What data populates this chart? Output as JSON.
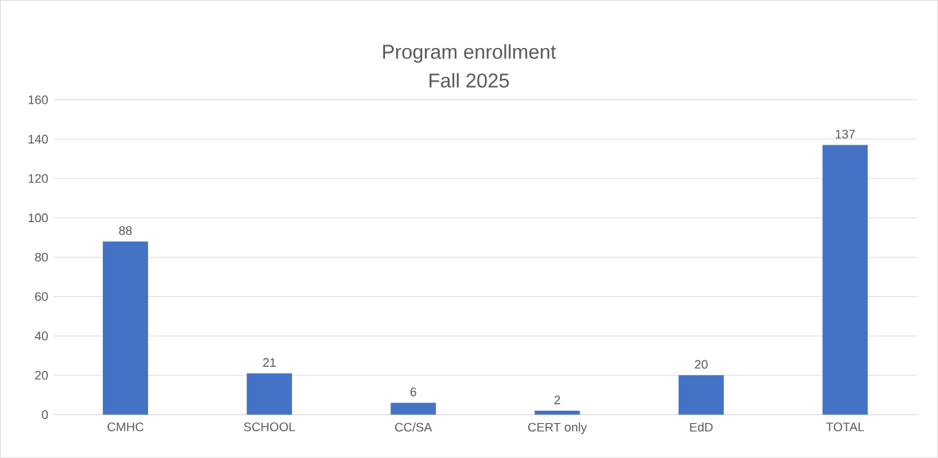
{
  "chart_data": {
    "type": "bar",
    "title": "Program enrollment",
    "subtitle": "Fall 2025",
    "categories": [
      "CMHC",
      "SCHOOL",
      "CC/SA",
      "CERT only",
      "EdD",
      "TOTAL"
    ],
    "values": [
      88,
      21,
      6,
      2,
      20,
      137
    ],
    "color": "#4472c4",
    "ylim": [
      0,
      160
    ],
    "yticks": [
      0,
      20,
      40,
      60,
      80,
      100,
      120,
      140,
      160
    ],
    "grid": "y",
    "data_labels": true
  }
}
